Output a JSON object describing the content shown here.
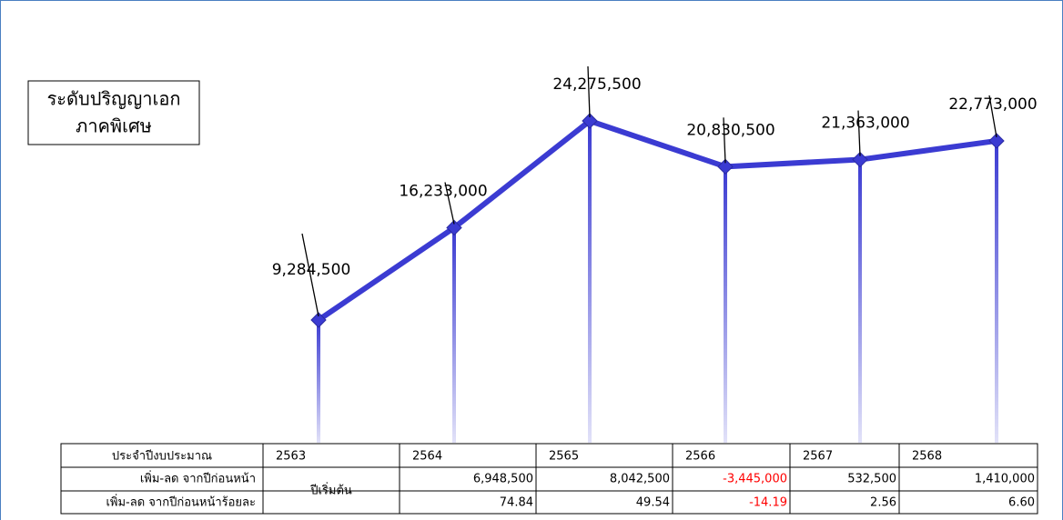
{
  "chart_data": {
    "type": "line",
    "title_lines": [
      "ระดับปริญญาเอก",
      "ภาคพิเศษ"
    ],
    "series": [
      {
        "color": "#3b3bd2",
        "values": [
          9284500,
          16233000,
          24275500,
          20830500,
          21363000,
          22773000
        ],
        "value_labels": [
          "9,284,500",
          "16,233,000",
          "24,275,500",
          "20,830,500",
          "21,363,000",
          "22,773,000"
        ]
      }
    ],
    "grid": false
  },
  "table": {
    "header": [
      "ประจำปีงบประมาณ",
      "2563",
      "2564",
      "2565",
      "2566",
      "2567",
      "2568"
    ],
    "start_label": "ปีเริ่มต้น",
    "negative_color": "#ff0000",
    "rows": [
      [
        "เพิ่ม-ลด จากปีก่อนหน้า",
        "6,948,500",
        "8,042,500",
        "-3,445,000",
        "532,500",
        "1,410,000"
      ],
      [
        "เพิ่ม-ลด จากปีก่อนหน้าร้อยละ",
        "74.84",
        "49.54",
        "-14.19",
        "2.56",
        "6.60"
      ]
    ]
  }
}
